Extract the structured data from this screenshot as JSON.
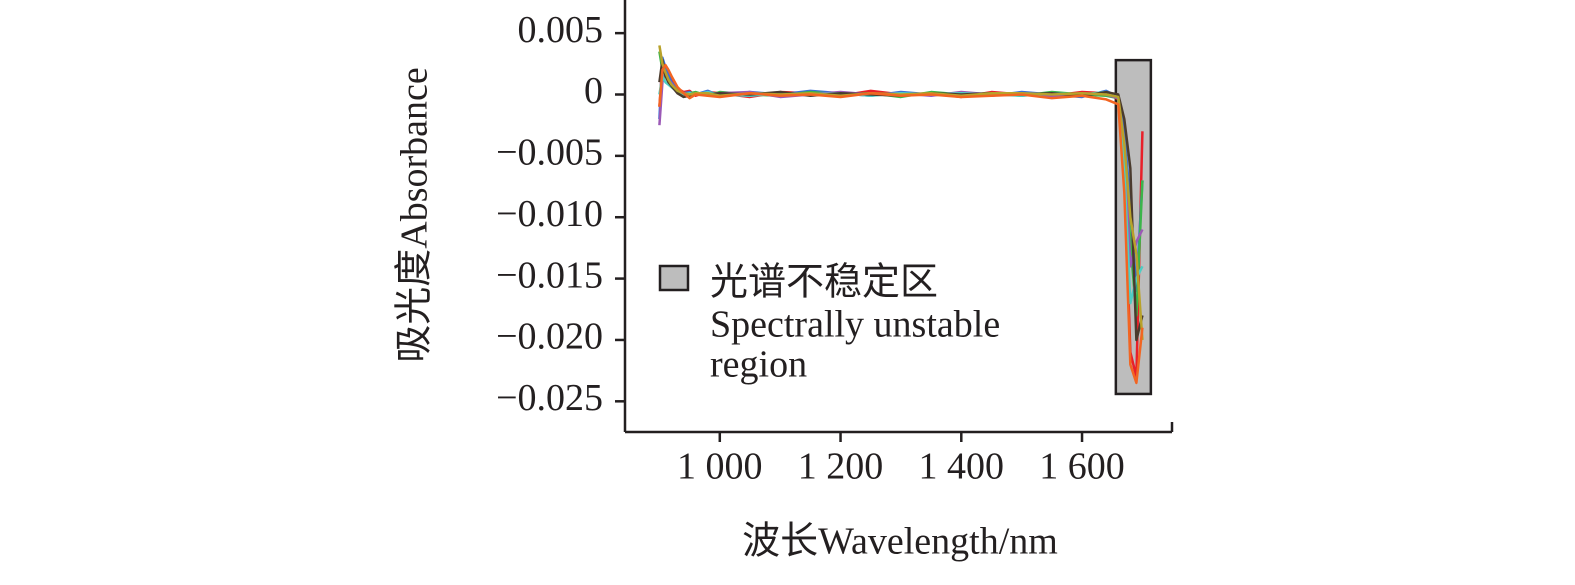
{
  "chart_data": {
    "type": "line",
    "x_label": "波长Wavelength/nm",
    "y_label": "吸光度Absorbance",
    "x": [
      900,
      905,
      910,
      915,
      920,
      930,
      940,
      950,
      960,
      980,
      1000,
      1050,
      1100,
      1150,
      1200,
      1250,
      1300,
      1350,
      1400,
      1450,
      1500,
      1550,
      1600,
      1640,
      1660,
      1670,
      1680,
      1690,
      1700
    ],
    "series": [
      {
        "color": "#e8202a",
        "values": [
          -0.001,
          0.0025,
          0.002,
          0.0018,
          0.0012,
          0.0005,
          0.0002,
          0.0003,
          -0.0001,
          0.0002,
          0.0001,
          -0.0002,
          0.0002,
          0.0001,
          -0.0001,
          0.0003,
          0,
          0.0001,
          -0.0002,
          0.0002,
          0,
          -0.0001,
          0.0002,
          0.0001,
          -0.0004,
          -0.006,
          -0.021,
          -0.023,
          -0.003
        ]
      },
      {
        "color": "#3a6fd8",
        "values": [
          -0.002,
          0.003,
          0.0022,
          0.0016,
          0.001,
          0.0004,
          0.0001,
          0.0002,
          0,
          0.0003,
          -0.0001,
          0.0002,
          0,
          0.0003,
          0.0001,
          -0.0001,
          0.0002,
          0,
          0.0001,
          -0.0001,
          0.0002,
          0,
          -0.0002,
          0.0003,
          -0.0002,
          -0.003,
          -0.009,
          -0.016,
          -0.007
        ]
      },
      {
        "color": "#3bb54a",
        "values": [
          0.0035,
          0.002,
          0.0015,
          0.0012,
          0.0008,
          0.0003,
          0,
          0.0001,
          0.0002,
          -0.0001,
          0.0002,
          0,
          -0.0001,
          0.0002,
          0,
          0.0001,
          -0.0002,
          0.0002,
          0,
          0.0001,
          -0.0001,
          0.0002,
          0,
          -0.0001,
          -0.0003,
          -0.005,
          -0.012,
          -0.018,
          -0.007
        ]
      },
      {
        "color": "#9b59b6",
        "values": [
          -0.0025,
          0.001,
          0.0018,
          0.0012,
          0.0009,
          0.0002,
          0.0001,
          -0.0002,
          0.0001,
          0,
          0.0001,
          0.0002,
          -0.0002,
          0,
          0.0002,
          0,
          0.0001,
          -0.0001,
          0.0002,
          0,
          0.0001,
          -0.0002,
          0.0001,
          0,
          -0.0003,
          -0.004,
          -0.014,
          -0.012,
          -0.011
        ]
      },
      {
        "color": "#4ecdc4",
        "values": [
          0,
          0.0015,
          0.001,
          0.0008,
          0.0006,
          0.0002,
          0,
          0.0001,
          0,
          0.0002,
          0,
          -0.0001,
          0.0001,
          0,
          0.0001,
          -0.0001,
          0.0001,
          0,
          0.0001,
          0,
          -0.0001,
          0.0001,
          0,
          0.0002,
          -0.0002,
          -0.006,
          -0.017,
          -0.015,
          -0.014
        ]
      },
      {
        "color": "#4a3b2e",
        "values": [
          0.001,
          0.0028,
          0.0015,
          0.001,
          0.0007,
          0.0001,
          -0.0002,
          -0.0001,
          0.0001,
          0,
          0.0001,
          0,
          0.0002,
          -0.0001,
          0.0001,
          0,
          -0.0001,
          0.0001,
          0,
          0.0001,
          0,
          0.0001,
          -0.0001,
          0.0002,
          0,
          -0.002,
          -0.006,
          -0.02,
          -0.018
        ]
      },
      {
        "color": "#b8a22a",
        "values": [
          0.004,
          0.0025,
          0.0018,
          0.0012,
          0.0008,
          0.0003,
          0.0001,
          0,
          0.0001,
          0.0001,
          -0.0001,
          0.0001,
          0,
          0.0001,
          -0.0001,
          0.0001,
          0,
          0.0001,
          -0.0001,
          0.0001,
          0.0001,
          0,
          0.0001,
          0,
          -0.0002,
          -0.004,
          -0.01,
          -0.013,
          -0.02
        ]
      },
      {
        "color": "#f26522",
        "values": [
          -0.001,
          0.002,
          0.0024,
          0.002,
          0.0015,
          0.0006,
          0.0001,
          -0.0003,
          0,
          -0.0001,
          -0.0002,
          0.0001,
          -0.0001,
          0,
          -0.0002,
          0.0001,
          -0.0001,
          0,
          -0.0002,
          -0.0001,
          0,
          -0.0003,
          -0.0001,
          -0.0004,
          -0.0008,
          -0.008,
          -0.022,
          -0.0235,
          -0.019
        ]
      }
    ],
    "xlim": [
      843,
      1749
    ],
    "ylim": [
      -0.0275,
      0.0077
    ],
    "xticks": [
      {
        "value": 1000,
        "label": "1 000"
      },
      {
        "value": 1200,
        "label": "1 200"
      },
      {
        "value": 1400,
        "label": "1 400"
      },
      {
        "value": 1600,
        "label": "1 600"
      }
    ],
    "yticks": [
      {
        "value": 0.005,
        "label": "0.005"
      },
      0,
      {
        "value": -0.005,
        "label": "−0.005"
      },
      {
        "value": -0.01,
        "label": "−0.010"
      },
      {
        "value": -0.015,
        "label": "−0.015"
      },
      {
        "value": -0.02,
        "label": "−0.020"
      },
      {
        "value": -0.025,
        "label": "−0.025"
      }
    ],
    "unstable_region": {
      "x": [
        1656,
        1714
      ],
      "y": [
        -0.0244,
        0.0028
      ],
      "color": "#bdbdbd",
      "legend": [
        "光谱不稳定区",
        "Spectrally unstable",
        "region"
      ]
    }
  }
}
